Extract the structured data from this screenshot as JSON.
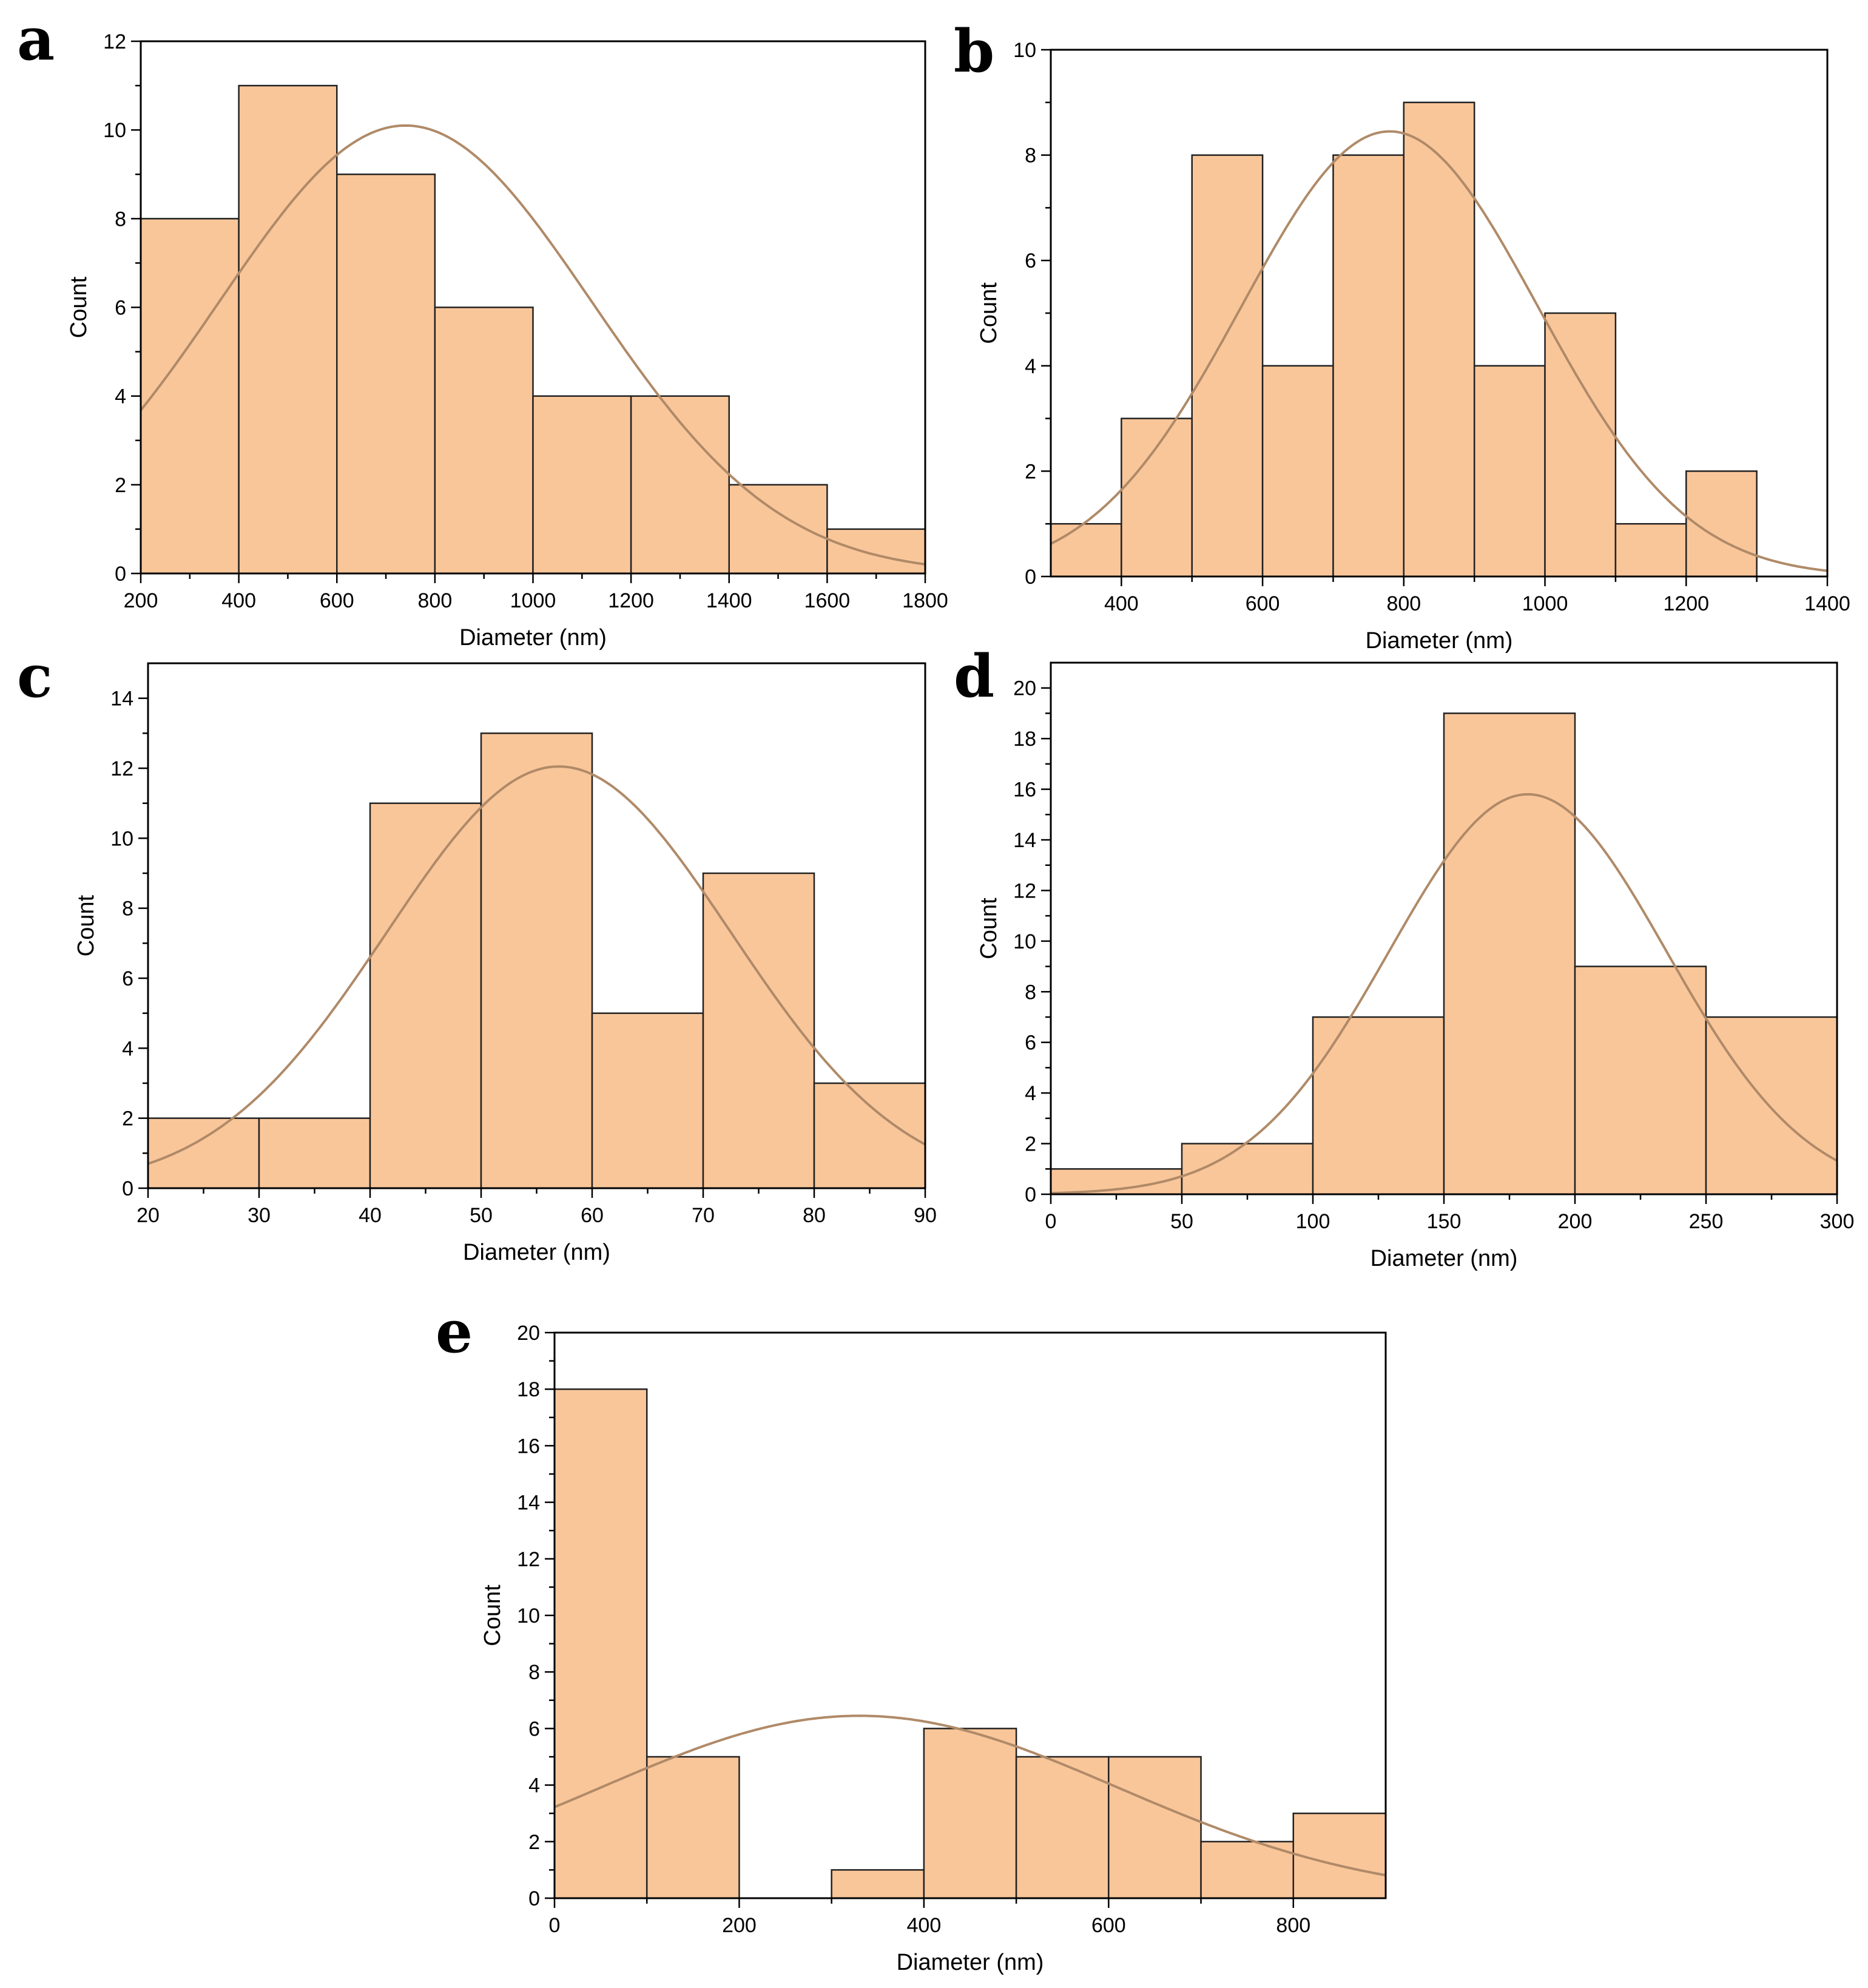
{
  "colors": {
    "bar_fill": "#f9c69a",
    "bar_edge": "#222222",
    "curve": "#b08a68",
    "axis": "#000000"
  },
  "chart_data": [
    {
      "panel": "a",
      "type": "bar",
      "xlabel": "Diameter (nm)",
      "ylabel": "Count",
      "xlim": [
        200,
        1800
      ],
      "ylim": [
        0,
        12
      ],
      "xticks": [
        200,
        400,
        600,
        800,
        1000,
        1200,
        1400,
        1600,
        1800
      ],
      "yticks": [
        0,
        2,
        4,
        6,
        8,
        10,
        12
      ],
      "bin_edges": [
        200,
        400,
        600,
        800,
        1000,
        1200,
        1400,
        1600,
        1800
      ],
      "counts": [
        8,
        11,
        9,
        6,
        4,
        4,
        2,
        1
      ],
      "fit": {
        "type": "normal",
        "mean": 740,
        "sigma": 380,
        "peak": 10.1
      }
    },
    {
      "panel": "b",
      "type": "bar",
      "xlabel": "Diameter (nm)",
      "ylabel": "Count",
      "xlim": [
        300,
        1400
      ],
      "ylim": [
        0,
        10
      ],
      "xticks": [
        400,
        600,
        800,
        1000,
        1200,
        1400
      ],
      "yticks": [
        0,
        2,
        4,
        6,
        8,
        10
      ],
      "bin_edges": [
        300,
        400,
        500,
        600,
        700,
        800,
        900,
        1000,
        1100,
        1200,
        1300
      ],
      "counts": [
        1,
        3,
        8,
        4,
        8,
        9,
        4,
        5,
        1,
        2
      ],
      "fit": {
        "type": "normal",
        "mean": 780,
        "sigma": 210,
        "peak": 8.45
      }
    },
    {
      "panel": "c",
      "type": "bar",
      "xlabel": "Diameter (nm)",
      "ylabel": "Count",
      "xlim": [
        20,
        90
      ],
      "ylim": [
        0,
        15
      ],
      "xticks": [
        20,
        30,
        40,
        50,
        60,
        70,
        80,
        90
      ],
      "yticks": [
        0,
        2,
        4,
        6,
        8,
        10,
        12,
        14
      ],
      "bin_edges": [
        20,
        30,
        40,
        50,
        60,
        70,
        80,
        90
      ],
      "counts": [
        2,
        2,
        11,
        13,
        5,
        9,
        3
      ],
      "fit": {
        "type": "normal",
        "mean": 57,
        "sigma": 15.5,
        "peak": 12.05
      }
    },
    {
      "panel": "d",
      "type": "bar",
      "xlabel": "Diameter (nm)",
      "ylabel": "Count",
      "xlim": [
        0,
        300
      ],
      "ylim": [
        0,
        21
      ],
      "xticks": [
        0,
        50,
        100,
        150,
        200,
        250,
        300
      ],
      "yticks": [
        0,
        2,
        4,
        6,
        8,
        10,
        12,
        14,
        16,
        18,
        20
      ],
      "bin_edges": [
        0,
        50,
        100,
        150,
        200,
        250,
        300
      ],
      "counts": [
        1,
        2,
        7,
        19,
        9,
        7
      ],
      "fit": {
        "type": "normal",
        "mean": 182,
        "sigma": 53,
        "peak": 15.8
      }
    },
    {
      "panel": "e",
      "type": "bar",
      "xlabel": "Diameter (nm)",
      "ylabel": "Count",
      "xlim": [
        0,
        900
      ],
      "ylim": [
        0,
        20
      ],
      "xticks": [
        0,
        200,
        400,
        600,
        800
      ],
      "yticks": [
        0,
        2,
        4,
        6,
        8,
        10,
        12,
        14,
        16,
        18,
        20
      ],
      "bin_edges": [
        0,
        100,
        200,
        300,
        400,
        500,
        600,
        700,
        800,
        900
      ],
      "counts": [
        18,
        5,
        0,
        1,
        6,
        5,
        5,
        2,
        3
      ],
      "fit": {
        "type": "normal",
        "mean": 330,
        "sigma": 280,
        "peak": 6.45
      }
    }
  ]
}
